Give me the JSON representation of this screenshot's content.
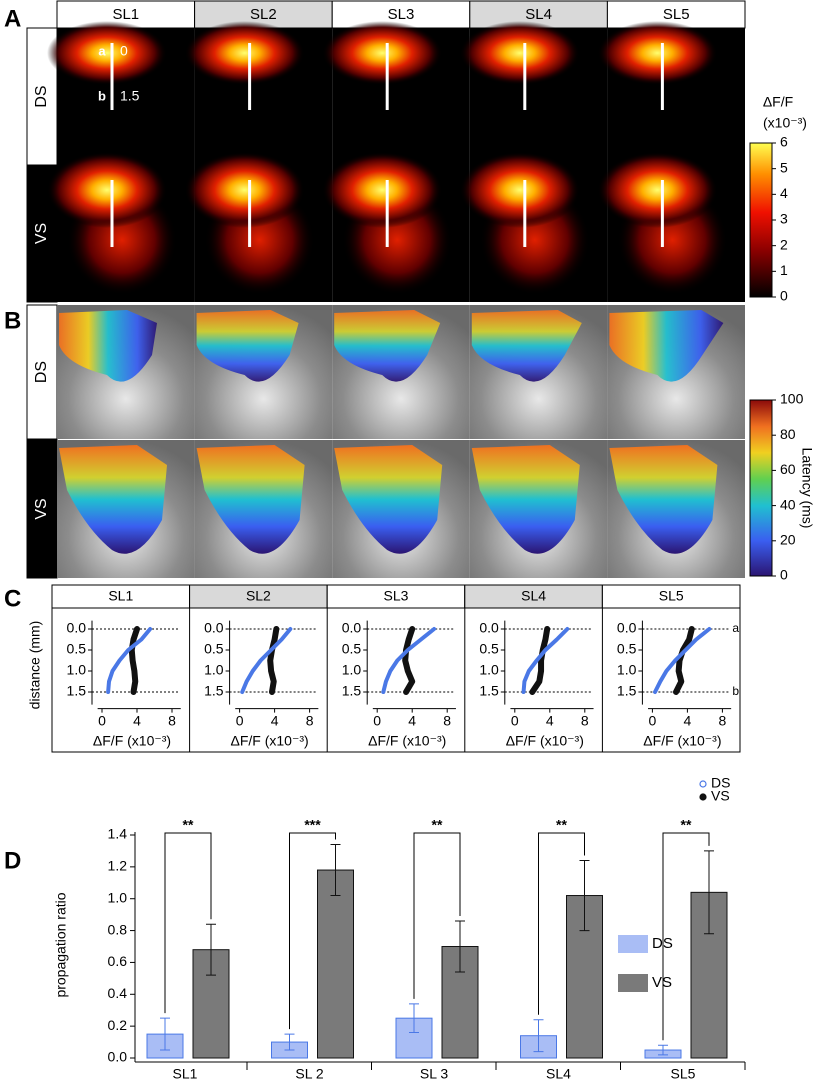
{
  "panel_labels": [
    "A",
    "B",
    "C",
    "D"
  ],
  "columns": [
    "SL1",
    "SL2",
    "SL3",
    "SL4",
    "SL5"
  ],
  "rows": [
    "DS",
    "VS"
  ],
  "panel_a": {
    "points": [
      {
        "label": "a",
        "depth": "0"
      },
      {
        "label": "b",
        "depth": "1.5"
      }
    ],
    "colorbar": {
      "label": "ΔF/F",
      "unit": "(x10⁻³)",
      "lim": [
        0,
        6
      ],
      "ticks": [
        0,
        1,
        2,
        3,
        4,
        5,
        6
      ]
    }
  },
  "panel_b": {
    "colorbar": {
      "label": "Latency (ms)",
      "lim": [
        0,
        100
      ],
      "ticks": [
        0,
        20,
        40,
        60,
        80,
        100
      ]
    }
  },
  "chart_data": [
    {
      "type": "profile",
      "xlabel": "ΔF/F (x10⁻³)",
      "ylabel": "distance (mm)",
      "y": [
        0,
        0.25,
        0.5,
        0.75,
        1.0,
        1.25,
        1.5
      ],
      "ylim": [
        -0.2,
        1.8
      ],
      "yticks": [
        {
          "value": 0,
          "label": "0.0"
        },
        {
          "value": 0.5,
          "label": "0.5"
        },
        {
          "value": 1,
          "label": "1.0"
        },
        {
          "value": 1.5,
          "label": "1.5"
        }
      ],
      "xlim": [
        -0.5,
        9
      ],
      "xticks": [
        0,
        4,
        8
      ],
      "reference_lines": [
        {
          "value": 0,
          "label": "a"
        },
        {
          "value": 1.5,
          "label": "b"
        }
      ],
      "series": [
        {
          "name": "DS",
          "color": "#4a78e6"
        },
        {
          "name": "VS",
          "color": "#111111"
        }
      ],
      "panels": [
        {
          "title": "SL1",
          "values": [
            [
              5.5,
              4.5,
              3,
              2,
              1.2,
              0.8,
              0.7
            ],
            [
              4,
              3.6,
              3.4,
              3.5,
              3.7,
              3.8,
              3.6
            ]
          ]
        },
        {
          "title": "SL2",
          "values": [
            [
              5.8,
              4.8,
              3.6,
              2.4,
              1.5,
              0.8,
              0.3
            ],
            [
              4.2,
              4,
              3.7,
              3.5,
              3.6,
              3.9,
              3.7
            ]
          ]
        },
        {
          "title": "SL3",
          "values": [
            [
              6.5,
              5,
              3.5,
              2.3,
              1.5,
              1,
              0.7
            ],
            [
              4,
              3.6,
              3.3,
              3.2,
              3.5,
              4,
              3.3
            ]
          ]
        },
        {
          "title": "SL4",
          "values": [
            [
              6,
              4.8,
              3.5,
              2.5,
              1.6,
              1.1,
              1
            ],
            [
              3.7,
              3.5,
              3.2,
              3,
              3,
              2.8,
              2
            ]
          ]
        },
        {
          "title": "SL5",
          "values": [
            [
              6.5,
              5,
              3.8,
              2.6,
              1.6,
              0.9,
              0.3
            ],
            [
              4.5,
              4.2,
              3.5,
              3.1,
              3,
              3.3,
              2.7
            ]
          ]
        }
      ]
    },
    {
      "type": "bar",
      "ylabel": "propagation ratio",
      "categories": [
        "SL1",
        "SL 2",
        "SL 3",
        "SL4",
        "SL5"
      ],
      "ylim": [
        0,
        1.4
      ],
      "yticks": [
        {
          "value": 0,
          "label": "0.0"
        },
        {
          "value": 0.2,
          "label": "0.2"
        },
        {
          "value": 0.4,
          "label": "0.4"
        },
        {
          "value": 0.6,
          "label": "0.6"
        },
        {
          "value": 0.8,
          "label": "0.8"
        },
        {
          "value": 1.0,
          "label": "1.0"
        },
        {
          "value": 1.2,
          "label": "1.2"
        },
        {
          "value": 1.4,
          "label": "1.4"
        }
      ],
      "series": [
        {
          "name": "DS",
          "color": "#a9bdf5",
          "edge": "#4a78e6",
          "values": [
            0.15,
            0.1,
            0.25,
            0.14,
            0.05
          ],
          "errors": [
            0.1,
            0.05,
            0.09,
            0.1,
            0.03
          ]
        },
        {
          "name": "VS",
          "color": "#7a7a7a",
          "edge": "#111111",
          "values": [
            0.68,
            1.18,
            0.7,
            1.02,
            1.04
          ],
          "errors": [
            0.16,
            0.16,
            0.16,
            0.22,
            0.26
          ]
        }
      ],
      "significance": [
        "**",
        "***",
        "**",
        "**",
        "**"
      ]
    }
  ]
}
